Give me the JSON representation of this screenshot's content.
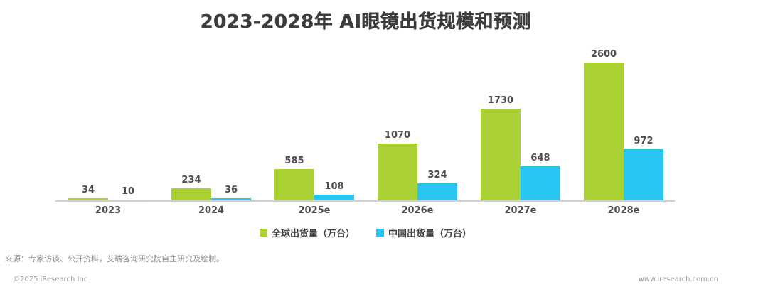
{
  "chart": {
    "title": "2023-2028年 AI眼镜出货规模和预测"
  },
  "chart_data": {
    "type": "bar",
    "title": "2023-2028年 AI眼镜出货规模和预测",
    "categories": [
      "2023",
      "2024",
      "2025e",
      "2026e",
      "2027e",
      "2028e"
    ],
    "series": [
      {
        "name": "全球出货量（万台）",
        "color": "#a9d134",
        "values": [
          34,
          234,
          585,
          1070,
          1730,
          2600
        ]
      },
      {
        "name": "中国出货量（万台）",
        "color": "#27c5f0",
        "values": [
          10,
          36,
          108,
          324,
          648,
          972
        ]
      }
    ],
    "ylim": [
      0,
      2600
    ],
    "grid": false,
    "y_axis_shown": false,
    "legend_position": "bottom",
    "value_labels": true
  },
  "legend": {
    "items": [
      {
        "label": "全球出货量（万台）",
        "color": "#a9d134"
      },
      {
        "label": "中国出货量（万台）",
        "color": "#27c5f0"
      }
    ]
  },
  "footer": {
    "source": "来源：专家访谈、公开资料，艾瑞咨询研究院自主研究及绘制。",
    "copyright": "©2025 iResearch Inc.",
    "website": "www.iresearch.com.cn"
  },
  "colors": {
    "global_bar": "#a9d134",
    "china_bar": "#27c5f0",
    "axis_line": "#cfcfcf",
    "title_text": "#3d3d3d",
    "label_text": "#4d4d4d"
  }
}
